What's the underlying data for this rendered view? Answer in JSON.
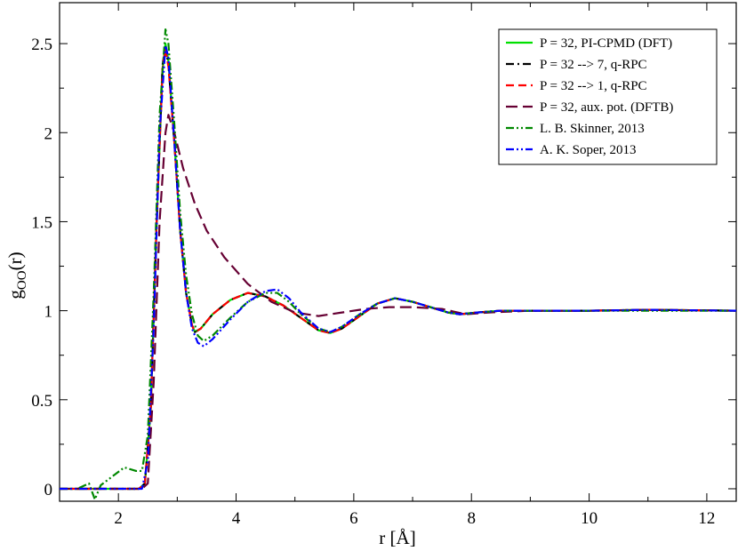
{
  "chart_data": {
    "type": "line",
    "xlabel": "r [Å]",
    "ylabel_main": "g",
    "ylabel_sub": "OO",
    "ylabel_tail": "(r)",
    "xlim": [
      1.0,
      12.5
    ],
    "ylim": [
      -0.07,
      2.73
    ],
    "xticks": [
      2,
      4,
      6,
      8,
      10,
      12
    ],
    "xtick_labels": [
      "2",
      "4",
      "6",
      "8",
      "10",
      "12"
    ],
    "yticks": [
      0,
      0.5,
      1,
      1.5,
      2,
      2.5
    ],
    "ytick_labels": [
      "0",
      "0.5",
      "1",
      "1.5",
      "2",
      "2.5"
    ],
    "grid": false,
    "legend_position": "top-right",
    "series": [
      {
        "name": "P = 32, PI-CPMD (DFT)",
        "color": "#00e000",
        "dash": "solid",
        "points": [
          [
            1.0,
            0
          ],
          [
            2.35,
            0
          ],
          [
            2.45,
            0.03
          ],
          [
            2.55,
            0.45
          ],
          [
            2.65,
            1.5
          ],
          [
            2.75,
            2.35
          ],
          [
            2.8,
            2.5
          ],
          [
            2.85,
            2.4
          ],
          [
            2.95,
            1.95
          ],
          [
            3.05,
            1.45
          ],
          [
            3.15,
            1.1
          ],
          [
            3.25,
            0.92
          ],
          [
            3.3,
            0.88
          ],
          [
            3.4,
            0.9
          ],
          [
            3.6,
            0.98
          ],
          [
            3.9,
            1.06
          ],
          [
            4.2,
            1.1
          ],
          [
            4.5,
            1.08
          ],
          [
            4.8,
            1.03
          ],
          [
            5.1,
            0.96
          ],
          [
            5.4,
            0.89
          ],
          [
            5.6,
            0.875
          ],
          [
            5.8,
            0.9
          ],
          [
            6.1,
            0.97
          ],
          [
            6.4,
            1.04
          ],
          [
            6.7,
            1.07
          ],
          [
            7.0,
            1.05
          ],
          [
            7.3,
            1.02
          ],
          [
            7.6,
            0.99
          ],
          [
            7.8,
            0.98
          ],
          [
            8.1,
            0.99
          ],
          [
            8.5,
            1.0
          ],
          [
            9.0,
            1.0
          ],
          [
            10.0,
            1.0
          ],
          [
            11.0,
            1.005
          ],
          [
            12.5,
            1.0
          ]
        ]
      },
      {
        "name": "P = 32 --> 7, q-RPC",
        "color": "#000000",
        "dash": "dashdot",
        "points": [
          [
            1.0,
            0
          ],
          [
            2.35,
            0
          ],
          [
            2.45,
            0.03
          ],
          [
            2.55,
            0.45
          ],
          [
            2.65,
            1.5
          ],
          [
            2.75,
            2.38
          ],
          [
            2.8,
            2.48
          ],
          [
            2.85,
            2.38
          ],
          [
            2.95,
            1.95
          ],
          [
            3.05,
            1.45
          ],
          [
            3.15,
            1.1
          ],
          [
            3.25,
            0.92
          ],
          [
            3.3,
            0.88
          ],
          [
            3.4,
            0.9
          ],
          [
            3.6,
            0.98
          ],
          [
            3.9,
            1.06
          ],
          [
            4.2,
            1.1
          ],
          [
            4.5,
            1.08
          ],
          [
            4.8,
            1.03
          ],
          [
            5.1,
            0.96
          ],
          [
            5.4,
            0.89
          ],
          [
            5.6,
            0.875
          ],
          [
            5.8,
            0.9
          ],
          [
            6.1,
            0.97
          ],
          [
            6.4,
            1.04
          ],
          [
            6.7,
            1.07
          ],
          [
            7.0,
            1.05
          ],
          [
            7.3,
            1.02
          ],
          [
            7.6,
            0.99
          ],
          [
            7.8,
            0.98
          ],
          [
            8.1,
            0.99
          ],
          [
            8.5,
            1.0
          ],
          [
            9.0,
            1.0
          ],
          [
            10.0,
            1.0
          ],
          [
            11.0,
            1.005
          ],
          [
            12.5,
            1.0
          ]
        ]
      },
      {
        "name": "P = 32 --> 1, q-RPC",
        "color": "#ff0000",
        "dash": "dash",
        "points": [
          [
            1.0,
            0
          ],
          [
            2.35,
            0
          ],
          [
            2.45,
            0.03
          ],
          [
            2.55,
            0.45
          ],
          [
            2.65,
            1.5
          ],
          [
            2.75,
            2.36
          ],
          [
            2.8,
            2.47
          ],
          [
            2.85,
            2.37
          ],
          [
            2.95,
            1.95
          ],
          [
            3.05,
            1.45
          ],
          [
            3.15,
            1.1
          ],
          [
            3.25,
            0.92
          ],
          [
            3.3,
            0.88
          ],
          [
            3.4,
            0.9
          ],
          [
            3.6,
            0.98
          ],
          [
            3.9,
            1.06
          ],
          [
            4.2,
            1.1
          ],
          [
            4.5,
            1.08
          ],
          [
            4.8,
            1.03
          ],
          [
            5.1,
            0.96
          ],
          [
            5.4,
            0.89
          ],
          [
            5.6,
            0.875
          ],
          [
            5.8,
            0.9
          ],
          [
            6.1,
            0.97
          ],
          [
            6.4,
            1.04
          ],
          [
            6.7,
            1.07
          ],
          [
            7.0,
            1.05
          ],
          [
            7.3,
            1.02
          ],
          [
            7.6,
            0.99
          ],
          [
            7.8,
            0.98
          ],
          [
            8.1,
            0.99
          ],
          [
            8.5,
            1.0
          ],
          [
            9.0,
            1.0
          ],
          [
            10.0,
            1.0
          ],
          [
            11.0,
            1.005
          ],
          [
            12.5,
            1.0
          ]
        ]
      },
      {
        "name": "P = 32, aux. pot. (DFTB)",
        "color": "#660033",
        "dash": "longdash",
        "points": [
          [
            1.0,
            0
          ],
          [
            2.4,
            0
          ],
          [
            2.5,
            0.03
          ],
          [
            2.6,
            0.6
          ],
          [
            2.7,
            1.5
          ],
          [
            2.8,
            2.0
          ],
          [
            2.85,
            2.1
          ],
          [
            2.95,
            2.0
          ],
          [
            3.1,
            1.8
          ],
          [
            3.3,
            1.6
          ],
          [
            3.5,
            1.45
          ],
          [
            3.8,
            1.3
          ],
          [
            4.2,
            1.15
          ],
          [
            4.6,
            1.05
          ],
          [
            5.0,
            0.99
          ],
          [
            5.4,
            0.97
          ],
          [
            5.8,
            0.99
          ],
          [
            6.2,
            1.01
          ],
          [
            6.6,
            1.02
          ],
          [
            7.0,
            1.02
          ],
          [
            7.5,
            1.01
          ],
          [
            7.9,
            0.98
          ],
          [
            8.3,
            0.99
          ],
          [
            9.0,
            1.0
          ],
          [
            10.0,
            1.0
          ],
          [
            11.0,
            1.005
          ],
          [
            12.5,
            1.0
          ]
        ]
      },
      {
        "name": "L. B. Skinner, 2013",
        "color": "#008800",
        "dash": "dashdotdot",
        "points": [
          [
            1.0,
            0
          ],
          [
            1.3,
            0
          ],
          [
            1.5,
            0.03
          ],
          [
            1.6,
            -0.06
          ],
          [
            1.7,
            0.02
          ],
          [
            1.9,
            0.07
          ],
          [
            2.1,
            0.12
          ],
          [
            2.3,
            0.1
          ],
          [
            2.4,
            0.1
          ],
          [
            2.5,
            0.3
          ],
          [
            2.6,
            1.1
          ],
          [
            2.7,
            2.1
          ],
          [
            2.8,
            2.58
          ],
          [
            2.85,
            2.5
          ],
          [
            2.95,
            2.05
          ],
          [
            3.05,
            1.55
          ],
          [
            3.15,
            1.2
          ],
          [
            3.25,
            0.98
          ],
          [
            3.35,
            0.86
          ],
          [
            3.45,
            0.83
          ],
          [
            3.6,
            0.86
          ],
          [
            3.9,
            0.96
          ],
          [
            4.2,
            1.05
          ],
          [
            4.5,
            1.1
          ],
          [
            4.7,
            1.1
          ],
          [
            4.9,
            1.05
          ],
          [
            5.1,
            0.98
          ],
          [
            5.4,
            0.9
          ],
          [
            5.6,
            0.88
          ],
          [
            5.8,
            0.91
          ],
          [
            6.1,
            0.98
          ],
          [
            6.4,
            1.04
          ],
          [
            6.7,
            1.07
          ],
          [
            7.0,
            1.05
          ],
          [
            7.3,
            1.02
          ],
          [
            7.6,
            0.99
          ],
          [
            7.8,
            0.98
          ],
          [
            8.1,
            0.99
          ],
          [
            8.5,
            1.0
          ],
          [
            9.0,
            1.0
          ],
          [
            10.0,
            1.0
          ],
          [
            11.0,
            1.0
          ],
          [
            12.5,
            1.0
          ]
        ]
      },
      {
        "name": "A. K. Soper, 2013",
        "color": "#0000ff",
        "dash": "dashdotdot",
        "points": [
          [
            1.0,
            0
          ],
          [
            2.4,
            0
          ],
          [
            2.5,
            0.15
          ],
          [
            2.6,
            0.9
          ],
          [
            2.7,
            2.0
          ],
          [
            2.8,
            2.49
          ],
          [
            2.85,
            2.42
          ],
          [
            2.95,
            1.95
          ],
          [
            3.05,
            1.45
          ],
          [
            3.15,
            1.1
          ],
          [
            3.25,
            0.9
          ],
          [
            3.35,
            0.82
          ],
          [
            3.45,
            0.8
          ],
          [
            3.6,
            0.84
          ],
          [
            3.9,
            0.95
          ],
          [
            4.2,
            1.05
          ],
          [
            4.5,
            1.11
          ],
          [
            4.7,
            1.12
          ],
          [
            4.9,
            1.07
          ],
          [
            5.1,
            0.99
          ],
          [
            5.4,
            0.9
          ],
          [
            5.6,
            0.88
          ],
          [
            5.8,
            0.91
          ],
          [
            6.1,
            0.98
          ],
          [
            6.4,
            1.04
          ],
          [
            6.7,
            1.07
          ],
          [
            7.0,
            1.05
          ],
          [
            7.3,
            1.02
          ],
          [
            7.6,
            0.99
          ],
          [
            7.8,
            0.98
          ],
          [
            8.1,
            0.99
          ],
          [
            8.5,
            1.0
          ],
          [
            9.0,
            1.0
          ],
          [
            10.0,
            1.0
          ],
          [
            11.0,
            1.005
          ],
          [
            12.5,
            1.0
          ]
        ]
      }
    ]
  }
}
